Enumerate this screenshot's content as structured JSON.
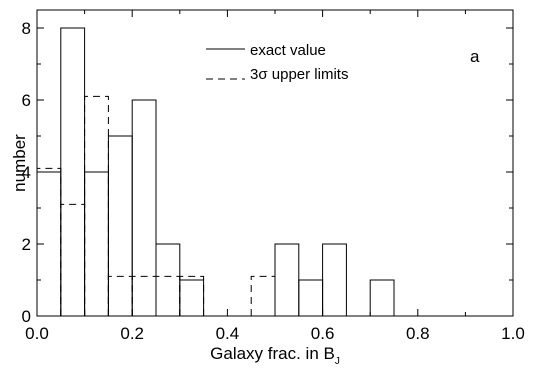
{
  "chart_data": {
    "type": "bar",
    "subtype": "histogram",
    "panel_label": "a",
    "xlabel": "Galaxy frac. in B",
    "xlabel_subscript": "J",
    "ylabel": "number",
    "xlim": [
      0.0,
      1.0
    ],
    "ylim": [
      0,
      8.5
    ],
    "x_ticks": [
      "0.0",
      "0.2",
      "0.4",
      "0.6",
      "0.8",
      "1.0"
    ],
    "y_ticks": [
      "0",
      "2",
      "4",
      "6",
      "8"
    ],
    "bin_width": 0.05,
    "legend_position": "top-right",
    "series": [
      {
        "name": "exact value",
        "style": "solid",
        "bins": [
          {
            "x0": 0.0,
            "count": 4
          },
          {
            "x0": 0.05,
            "count": 8
          },
          {
            "x0": 0.1,
            "count": 4
          },
          {
            "x0": 0.15,
            "count": 5
          },
          {
            "x0": 0.2,
            "count": 6
          },
          {
            "x0": 0.25,
            "count": 2
          },
          {
            "x0": 0.3,
            "count": 1
          },
          {
            "x0": 0.5,
            "count": 2
          },
          {
            "x0": 0.55,
            "count": 1
          },
          {
            "x0": 0.6,
            "count": 2
          },
          {
            "x0": 0.7,
            "count": 1
          }
        ]
      },
      {
        "name": "3σ upper limits",
        "style": "dashed",
        "bins": [
          {
            "x0": 0.0,
            "count": 4.1
          },
          {
            "x0": 0.05,
            "count": 3.1
          },
          {
            "x0": 0.1,
            "count": 6.1
          },
          {
            "x0": 0.15,
            "count": 1.1
          },
          {
            "x0": 0.2,
            "count": 1.1
          },
          {
            "x0": 0.25,
            "count": 1.1
          },
          {
            "x0": 0.3,
            "count": 1.1
          },
          {
            "x0": 0.45,
            "count": 1.1
          }
        ]
      }
    ]
  }
}
